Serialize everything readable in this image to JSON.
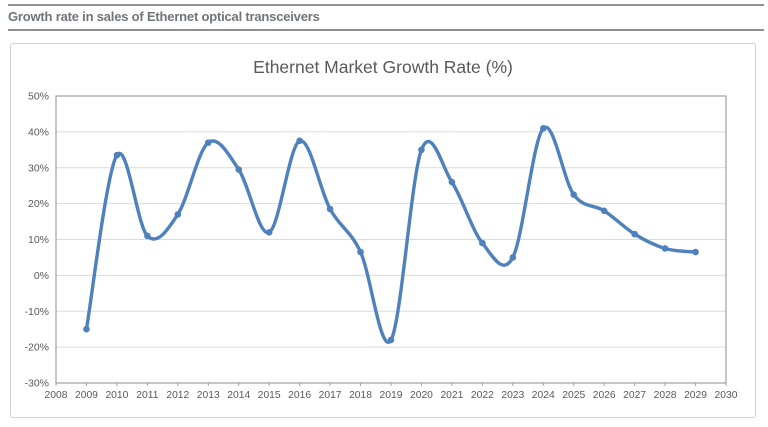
{
  "header": {
    "title": "Growth rate in sales of Ethernet optical transceivers",
    "color": "#70757a"
  },
  "chart_data": {
    "type": "line",
    "title": "Ethernet Market Growth Rate (%)",
    "x": [
      2009,
      2010,
      2011,
      2012,
      2013,
      2014,
      2015,
      2016,
      2017,
      2018,
      2019,
      2020,
      2021,
      2022,
      2023,
      2024,
      2025,
      2026,
      2027,
      2028,
      2029
    ],
    "values": [
      -15,
      33.5,
      11,
      17,
      37,
      29.5,
      12,
      37.5,
      18.5,
      6.5,
      -18,
      35,
      26,
      9,
      5,
      41,
      22.5,
      18,
      11.5,
      7.5,
      6.5
    ],
    "series_name": "Ethernet market growth rate",
    "xlabel": "",
    "ylabel": "",
    "x_axis_range": [
      2008,
      2030
    ],
    "y_axis_range": [
      -30,
      50
    ],
    "x_ticks": [
      "2008",
      "2009",
      "2010",
      "2011",
      "2012",
      "2013",
      "2014",
      "2015",
      "2016",
      "2017",
      "2018",
      "2019",
      "2020",
      "2021",
      "2022",
      "2023",
      "2024",
      "2025",
      "2026",
      "2027",
      "2028",
      "2029",
      "2030"
    ],
    "y_ticks": [
      "50%",
      "40%",
      "30%",
      "20%",
      "10%",
      "0%",
      "-10%",
      "-20%",
      "-30%"
    ],
    "grid": true,
    "smooth": true,
    "legend": "none",
    "colors": {
      "line": "#4f81bd",
      "marker": "#4f81bd",
      "grid": "#dcdcdc",
      "plot_border": "#a0a0a0",
      "axis_text": "#595959",
      "title": "#595959"
    }
  }
}
